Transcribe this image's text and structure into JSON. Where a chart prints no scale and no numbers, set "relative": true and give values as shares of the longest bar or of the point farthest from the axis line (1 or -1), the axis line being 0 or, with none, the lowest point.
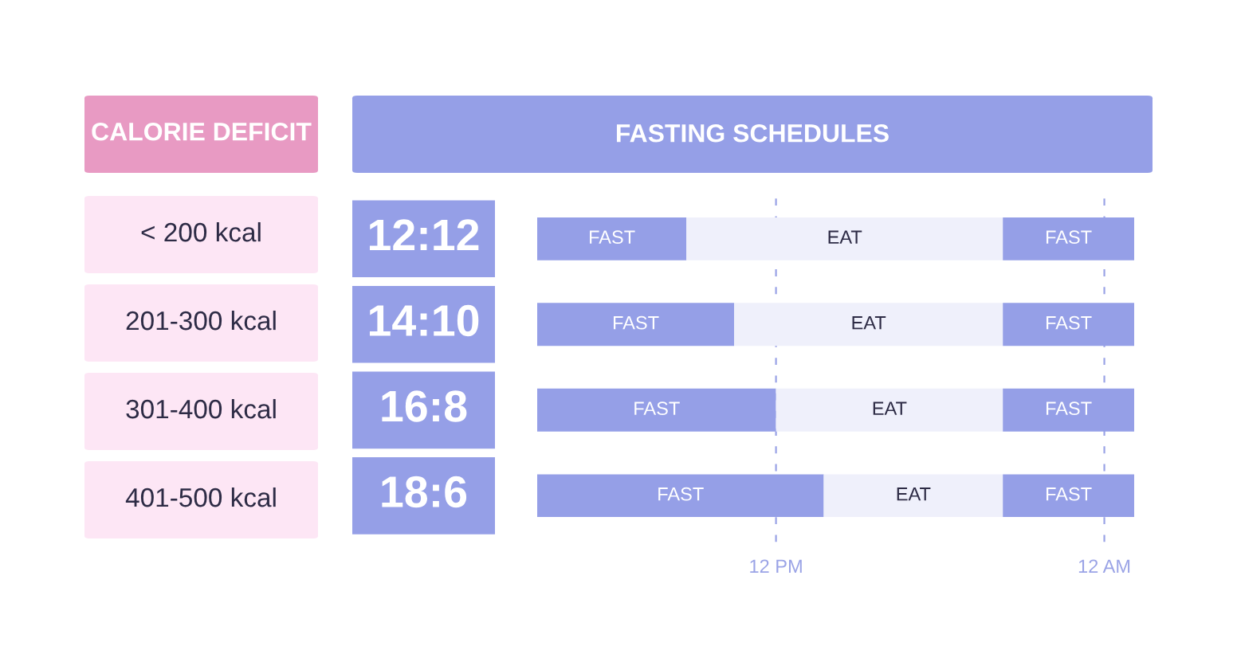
{
  "chart_data": [
    {
      "type": "other",
      "title": "CALORIE DEFICIT",
      "annotations": [
        "< 200 kcal",
        "201-300 kcal",
        "301-400 kcal",
        "401-500 kcal"
      ]
    },
    {
      "type": "bar",
      "orientation": "horizontal",
      "stacked": true,
      "relative": true,
      "title": "FASTING SCHEDULES",
      "categories": [
        "12:12",
        "14:10",
        "16:8",
        "18:6"
      ],
      "series": [
        {
          "name": "FAST",
          "color": "#959fe7",
          "values": [
            0.25,
            0.33,
            0.4,
            0.48
          ]
        },
        {
          "name": "EAT",
          "color": "#eff0fb",
          "values": [
            0.53,
            0.45,
            0.38,
            0.3
          ]
        },
        {
          "name": "FAST",
          "color": "#959fe7",
          "values": [
            0.22,
            0.22,
            0.22,
            0.22
          ]
        }
      ],
      "ref_lines": [
        {
          "axis": "x",
          "value": 0.4,
          "label": "12 PM",
          "color": "#9aa3e6",
          "line_style": "dashed"
        },
        {
          "axis": "x",
          "value": 0.95,
          "label": "12 AM",
          "color": "#9aa3e6",
          "line_style": "dashed"
        }
      ]
    }
  ]
}
